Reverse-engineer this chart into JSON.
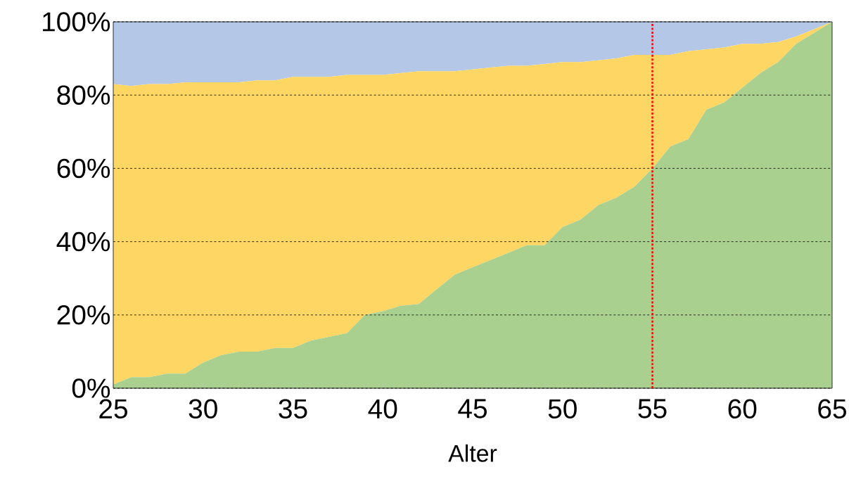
{
  "chart_data": {
    "type": "area",
    "stacked": true,
    "xlabel": "Alter",
    "x": [
      25,
      26,
      27,
      28,
      29,
      30,
      31,
      32,
      33,
      34,
      35,
      36,
      37,
      38,
      39,
      40,
      41,
      42,
      43,
      44,
      45,
      46,
      47,
      48,
      49,
      50,
      51,
      52,
      53,
      54,
      55,
      56,
      57,
      58,
      59,
      60,
      61,
      62,
      63,
      64,
      65
    ],
    "series": [
      {
        "color": "#a9d08e",
        "values": [
          1,
          3,
          3,
          4,
          4,
          7,
          9,
          10,
          10,
          11,
          11,
          13,
          14,
          15,
          20,
          21,
          22.5,
          23,
          27,
          31,
          33,
          35,
          37,
          39,
          39,
          44,
          46,
          50,
          52,
          55,
          60,
          66,
          68,
          76,
          78,
          82,
          86,
          89,
          94,
          97,
          100
        ]
      },
      {
        "color": "#fdd663",
        "values": [
          82,
          79.5,
          80,
          79,
          79.5,
          76.5,
          74.5,
          73.5,
          74,
          73,
          74,
          72,
          71,
          70.5,
          65.5,
          64.5,
          63.5,
          63.5,
          59.5,
          55.5,
          54,
          52.5,
          51,
          49,
          49.5,
          45,
          43,
          39.5,
          38,
          36,
          31,
          25,
          24,
          16.5,
          15,
          12,
          8,
          5.5,
          2,
          1,
          0
        ]
      },
      {
        "color": "#b4c7e7",
        "values": [
          17,
          17.5,
          17,
          17,
          16.5,
          16.5,
          16.5,
          16.5,
          16,
          16,
          15,
          15,
          15,
          14.5,
          14.5,
          14.5,
          14,
          13.5,
          13.5,
          13.5,
          13,
          12.5,
          12,
          12,
          11.5,
          11,
          11,
          10.5,
          10,
          9,
          9,
          9,
          8,
          7.5,
          7,
          6,
          6,
          5.5,
          4,
          2,
          0
        ]
      }
    ],
    "xlim": [
      25,
      65
    ],
    "xticks": [
      25,
      30,
      35,
      40,
      45,
      50,
      55,
      60,
      65
    ],
    "ylim": [
      0,
      100
    ],
    "yticks": [
      {
        "value": 0,
        "label": "0%"
      },
      {
        "value": 20,
        "label": "20%"
      },
      {
        "value": 40,
        "label": "40%"
      },
      {
        "value": 60,
        "label": "60%"
      },
      {
        "value": 80,
        "label": "80%"
      },
      {
        "value": 100,
        "label": "100%"
      }
    ],
    "grid": "y",
    "legend": false,
    "ref_lines": [
      {
        "axis": "x",
        "value": 55,
        "color": "#ff0000",
        "line_style": "dotted"
      }
    ]
  }
}
